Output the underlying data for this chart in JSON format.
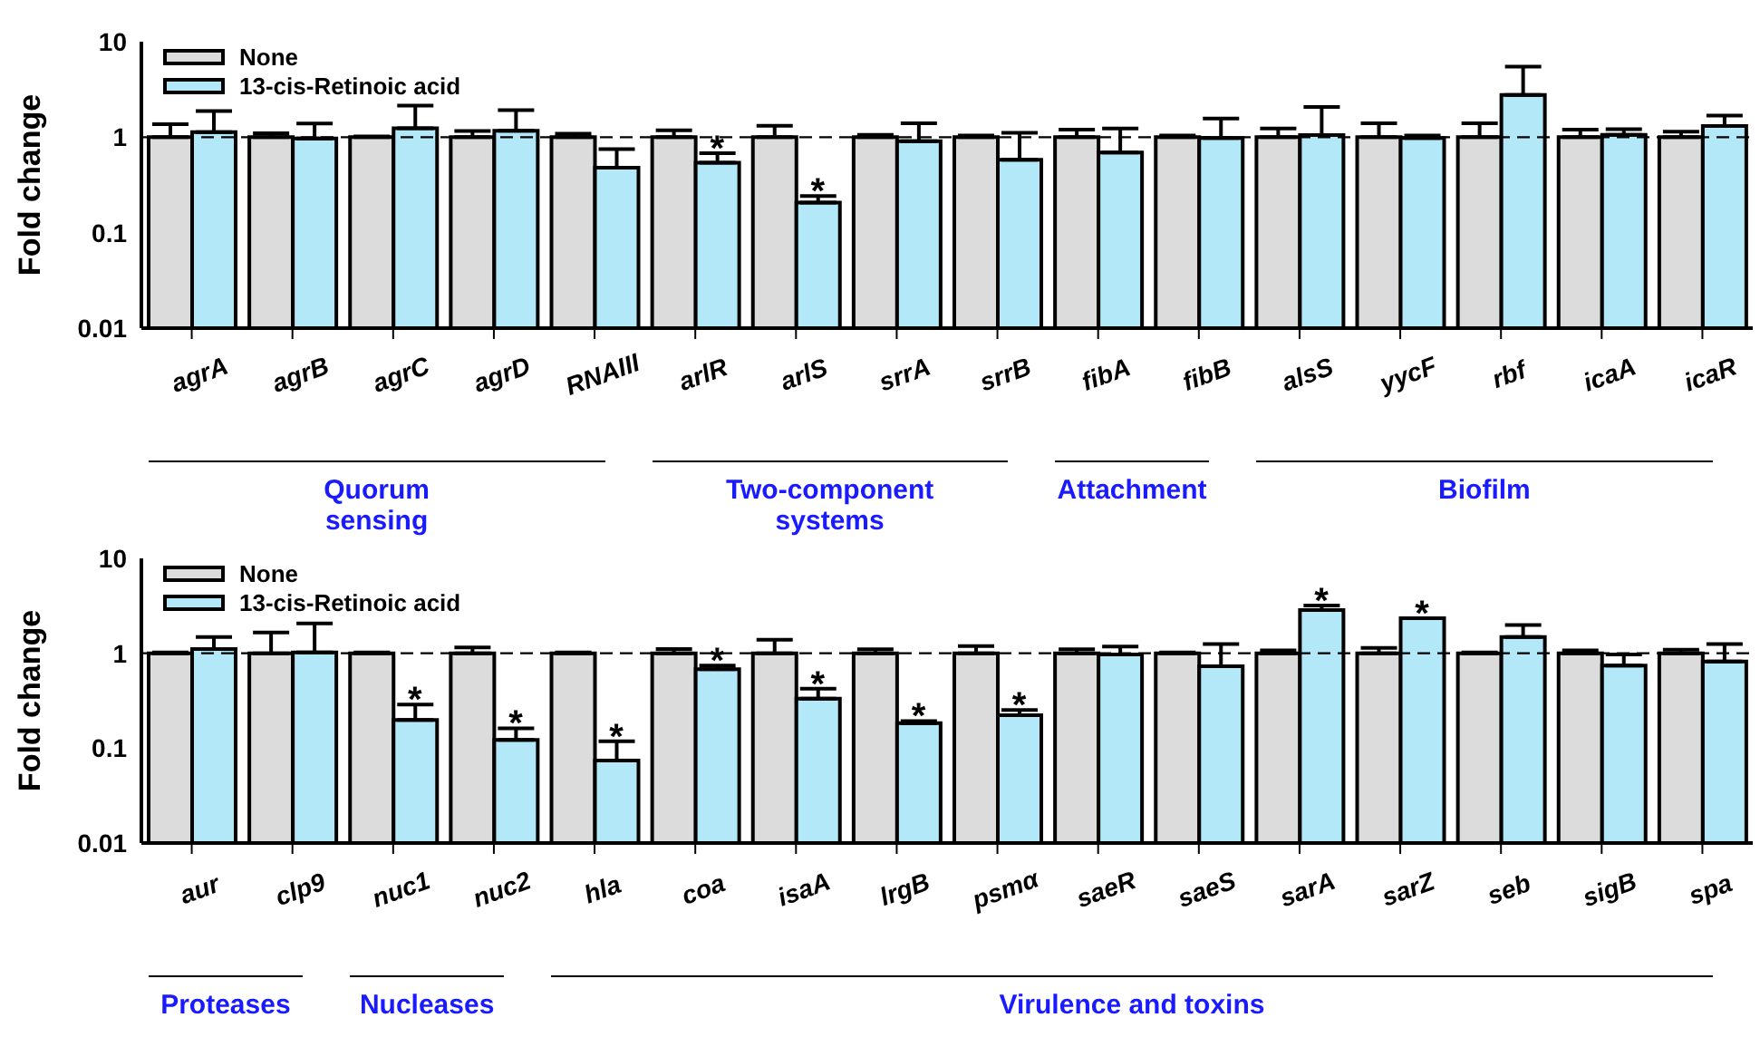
{
  "chart_data": [
    {
      "type": "bar",
      "ylabel": "Fold change",
      "log": true,
      "ylim": [
        0.01,
        10
      ],
      "yticks": [
        0.01,
        0.1,
        1,
        10
      ],
      "legend": "top left",
      "grid": false,
      "categories": [
        "agrA",
        "agrB",
        "agrC",
        "agrD",
        "RNAIII",
        "arlR",
        "arlS",
        "srrA",
        "srrB",
        "fibA",
        "fibB",
        "alsS",
        "yycF",
        "rbf",
        "icaA",
        "icaR"
      ],
      "series": [
        {
          "name": "None",
          "color": "#dcdcdc",
          "values": [
            1,
            1,
            1,
            1,
            1,
            1,
            1,
            1,
            1,
            1,
            1,
            1,
            1,
            1,
            1,
            1
          ],
          "errors": [
            [
              1,
              1.37
            ],
            [
              1,
              1.1
            ],
            [
              1,
              1.02
            ],
            [
              1,
              1.16
            ],
            [
              1,
              1.09
            ],
            [
              1,
              1.18
            ],
            [
              1,
              1.32
            ],
            [
              1,
              1.06
            ],
            [
              1,
              1.04
            ],
            [
              1,
              1.2
            ],
            [
              1,
              1.04
            ],
            [
              1,
              1.23
            ],
            [
              1,
              1.4
            ],
            [
              1,
              1.4
            ],
            [
              1,
              1.2
            ],
            [
              1,
              1.14
            ]
          ]
        },
        {
          "name": "13-cis-Retinoic acid",
          "color": "#b3e8f8",
          "values": [
            1.13,
            0.97,
            1.24,
            1.17,
            0.48,
            0.54,
            0.207,
            0.91,
            0.58,
            0.69,
            0.98,
            1.05,
            0.98,
            2.77,
            1.06,
            1.31
          ],
          "errors": [
            [
              1.13,
              1.88
            ],
            [
              0.97,
              1.39
            ],
            [
              1.24,
              2.14
            ],
            [
              1.17,
              1.92
            ],
            [
              0.48,
              0.75
            ],
            [
              0.54,
              0.68
            ],
            [
              0.207,
              0.242
            ],
            [
              0.91,
              1.4
            ],
            [
              0.58,
              1.11
            ],
            [
              0.69,
              1.23
            ],
            [
              0.98,
              1.57
            ],
            [
              1.05,
              2.07
            ],
            [
              0.98,
              1.04
            ],
            [
              2.77,
              5.47
            ],
            [
              1.06,
              1.21
            ],
            [
              1.31,
              1.68
            ]
          ]
        }
      ],
      "ref_lines": [
        {
          "axis": "y",
          "value": 1,
          "line_style": "dashed",
          "color": "#000000"
        }
      ],
      "annotations": [
        "Quorum\nsensing",
        "Two-component\nsystems",
        "Attachment",
        "Biofilm",
        {
          "text": "*",
          "x": "arlR",
          "y": 0.68
        },
        {
          "text": "*",
          "x": "arlS",
          "y": 0.242
        }
      ]
    },
    {
      "type": "bar",
      "ylabel": "Fold change",
      "log": true,
      "ylim": [
        0.01,
        10
      ],
      "yticks": [
        0.01,
        0.1,
        1,
        10
      ],
      "legend": "top left",
      "grid": false,
      "categories": [
        "aur",
        "clp9",
        "nuc1",
        "nuc2",
        "hla",
        "coa",
        "isaA",
        "lrgB",
        "psmα",
        "saeR",
        "saeS",
        "sarA",
        "sarZ",
        "seb",
        "sigB",
        "spa"
      ],
      "series": [
        {
          "name": "None",
          "color": "#dcdcdc",
          "values": [
            1,
            1,
            1,
            1,
            1,
            1,
            1,
            1,
            1,
            1,
            1,
            1,
            1,
            1,
            1,
            1
          ],
          "errors": [
            [
              1,
              1.02
            ],
            [
              1,
              1.66
            ],
            [
              1,
              1.02
            ],
            [
              1,
              1.15
            ],
            [
              1,
              1.02
            ],
            [
              1,
              1.11
            ],
            [
              1,
              1.39
            ],
            [
              1,
              1.1
            ],
            [
              1,
              1.19
            ],
            [
              1,
              1.1
            ],
            [
              1,
              1.02
            ],
            [
              1,
              1.07
            ],
            [
              1,
              1.14
            ],
            [
              1,
              1.02
            ],
            [
              1,
              1.07
            ],
            [
              1,
              1.09
            ]
          ]
        },
        {
          "name": "13-cis-Retinoic acid",
          "color": "#b3e8f8",
          "values": [
            1.11,
            1.02,
            0.198,
            0.122,
            0.074,
            0.68,
            0.333,
            0.183,
            0.223,
            0.97,
            0.73,
            2.86,
            2.34,
            1.48,
            0.74,
            0.82
          ],
          "errors": [
            [
              1.11,
              1.48
            ],
            [
              1.02,
              2.06
            ],
            [
              0.198,
              0.288
            ],
            [
              0.122,
              0.162
            ],
            [
              0.074,
              0.118
            ],
            [
              0.68,
              0.74
            ],
            [
              0.333,
              0.423
            ],
            [
              0.183,
              0.193
            ],
            [
              0.223,
              0.253
            ],
            [
              0.97,
              1.18
            ],
            [
              0.73,
              1.25
            ],
            [
              2.86,
              3.18
            ],
            null,
            [
              1.48,
              1.98
            ],
            [
              0.74,
              0.97
            ],
            [
              0.82,
              1.25
            ]
          ]
        }
      ],
      "ref_lines": [
        {
          "axis": "y",
          "value": 1,
          "line_style": "dashed",
          "color": "#000000"
        }
      ],
      "annotations": [
        "Proteases",
        "Nucleases",
        "Virulence and toxins",
        {
          "text": "*",
          "x": "nuc1",
          "y": 0.288
        },
        {
          "text": "*",
          "x": "nuc2",
          "y": 0.162
        },
        {
          "text": "*",
          "x": "hla",
          "y": 0.118
        },
        {
          "text": "*",
          "x": "coa",
          "y": 0.74
        },
        {
          "text": "*",
          "x": "isaA",
          "y": 0.423
        },
        {
          "text": "*",
          "x": "lrgB",
          "y": 0.193
        },
        {
          "text": "*",
          "x": "psmα",
          "y": 0.253
        },
        {
          "text": "*",
          "x": "sarA",
          "y": 3.18
        },
        {
          "text": "*",
          "x": "sarZ",
          "y": 2.34
        }
      ]
    }
  ]
}
